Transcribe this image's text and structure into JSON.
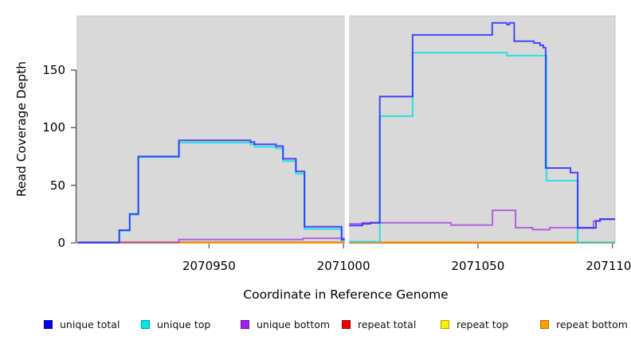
{
  "chart_data": {
    "type": "line",
    "subtype": "step-coverage-plot",
    "title": "",
    "xlabel": "Coordinate in Reference Genome",
    "ylabel": "Read Coverage Depth",
    "xlim": [
      2070901,
      2071101
    ],
    "ylim": [
      0,
      197
    ],
    "grid": false,
    "legend_position": "bottom",
    "plot_background": "#d9d9d9",
    "gap": {
      "from": 2071000.6,
      "to": 2071001.9
    },
    "x_ticks": [
      {
        "value": 2070950,
        "label": "2070950"
      },
      {
        "value": 2071000,
        "label": "2071000"
      },
      {
        "value": 2071050,
        "label": "2071050"
      },
      {
        "value": 2071100,
        "label": "2071100"
      }
    ],
    "y_ticks": [
      {
        "value": 0,
        "label": "0"
      },
      {
        "value": 50,
        "label": "50"
      },
      {
        "value": 100,
        "label": "100"
      },
      {
        "value": 150,
        "label": "150"
      }
    ],
    "series": [
      {
        "name": "unique total",
        "color": "#1f1fff",
        "legend_fill": "#0000ee",
        "legend_border": "#0000a0",
        "z": 5,
        "segments": [
          [
            [
              2070901,
              0.3
            ],
            [
              2070916.6,
              11
            ],
            [
              2070920.5,
              25
            ],
            [
              2070923.7,
              75
            ],
            [
              2070938.8,
              89
            ],
            [
              2070965.4,
              87.5
            ],
            [
              2070966.9,
              85.5
            ],
            [
              2070974.9,
              84
            ],
            [
              2070977.5,
              73
            ],
            [
              2070982.3,
              62
            ],
            [
              2070985.5,
              14
            ],
            [
              2070999.3,
              3
            ],
            [
              2071000.6,
              3
            ]
          ],
          [
            [
              2071001.9,
              15
            ],
            [
              2071007,
              16.5
            ],
            [
              2071010,
              17.5
            ],
            [
              2071013.5,
              127
            ],
            [
              2071025.7,
              180.5
            ],
            [
              2071055.3,
              191
            ],
            [
              2071060.8,
              189.5
            ],
            [
              2071061.7,
              191
            ],
            [
              2071063.5,
              175
            ],
            [
              2071070.8,
              173.5
            ],
            [
              2071073.1,
              171.5
            ],
            [
              2071074.3,
              169.5
            ],
            [
              2071075.2,
              65
            ],
            [
              2071084.4,
              61
            ],
            [
              2071087.1,
              13
            ],
            [
              2071093.9,
              19
            ],
            [
              2071095.4,
              20.5
            ],
            [
              2071101,
              20.5
            ]
          ]
        ]
      },
      {
        "name": "unique top",
        "color": "#00dede",
        "legend_fill": "#00e6e6",
        "legend_border": "#009898",
        "z": 4,
        "segments": [
          [
            [
              2070901,
              0.2
            ],
            [
              2070916.6,
              10.5
            ],
            [
              2070920.5,
              24.5
            ],
            [
              2070923.7,
              74.5
            ],
            [
              2070938.8,
              87
            ],
            [
              2070965.4,
              85.5
            ],
            [
              2070966.9,
              83.5
            ],
            [
              2070974.9,
              82
            ],
            [
              2070977.5,
              71
            ],
            [
              2070982.3,
              60
            ],
            [
              2070985.5,
              12
            ],
            [
              2070999.3,
              2
            ],
            [
              2071000.6,
              2
            ]
          ],
          [
            [
              2071001.9,
              1
            ],
            [
              2071013.5,
              110
            ],
            [
              2071025.7,
              165
            ],
            [
              2071060.8,
              162.5
            ],
            [
              2071075.5,
              54
            ],
            [
              2071087.1,
              0.4
            ],
            [
              2071101,
              0.4
            ]
          ]
        ]
      },
      {
        "name": "unique bottom",
        "color": "#a244e0",
        "legend_fill": "#a020f0",
        "legend_border": "#6a0dad",
        "z": 3,
        "segments": [
          [
            [
              2070901,
              0.4
            ],
            [
              2070938.8,
              3
            ],
            [
              2070985,
              4
            ],
            [
              2071000.6,
              4
            ]
          ],
          [
            [
              2071001.9,
              16.5
            ],
            [
              2071007,
              17.5
            ],
            [
              2071040,
              15.5
            ],
            [
              2071055.4,
              28.3
            ],
            [
              2071064,
              13.2
            ],
            [
              2071070.3,
              11.5
            ],
            [
              2071076.7,
              13.2
            ],
            [
              2071093,
              19
            ],
            [
              2071095.4,
              20.5
            ],
            [
              2071101,
              20.5
            ]
          ]
        ]
      },
      {
        "name": "repeat total",
        "color": "#e02020",
        "legend_fill": "#ee0000",
        "legend_border": "#990000",
        "z": 1,
        "segments": [
          [
            [
              2070901,
              0.4
            ],
            [
              2071000.6,
              0.4
            ]
          ],
          [
            [
              2071001.9,
              0.2
            ],
            [
              2071101,
              0.2
            ]
          ]
        ]
      },
      {
        "name": "repeat top",
        "color": "#ffe800",
        "legend_fill": "#ffec00",
        "legend_border": "#b0a000",
        "z": 0,
        "segments": [
          [
            [
              2070901,
              0.05
            ],
            [
              2071000.6,
              0.05
            ]
          ],
          [
            [
              2071001.9,
              0.05
            ],
            [
              2071101,
              0.05
            ]
          ]
        ]
      },
      {
        "name": "repeat bottom",
        "color": "#ff9a00",
        "legend_fill": "#ff9d00",
        "legend_border": "#b06f00",
        "z": 2,
        "segments": [
          [
            [
              2070901,
              0
            ],
            [
              2070938.8,
              0.2
            ],
            [
              2071000.6,
              0.2
            ]
          ],
          [
            [
              2071001.9,
              0.6
            ],
            [
              2071087.1,
              0.4
            ],
            [
              2071101,
              0.4
            ]
          ]
        ]
      }
    ]
  }
}
